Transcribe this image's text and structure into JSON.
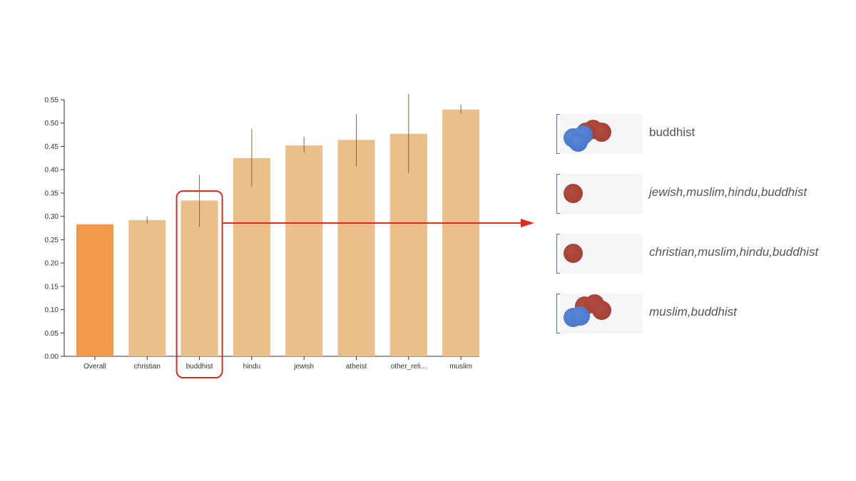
{
  "chart_data": {
    "type": "bar",
    "categories": [
      "Overall",
      "christian",
      "buddhist",
      "hindu",
      "jewish",
      "atheist",
      "other_reli...",
      "muslim"
    ],
    "values": [
      0.283,
      0.292,
      0.334,
      0.425,
      0.452,
      0.464,
      0.477,
      0.529
    ],
    "error_low": [
      0.283,
      0.285,
      0.277,
      0.363,
      0.436,
      0.407,
      0.392,
      0.52
    ],
    "error_high": [
      0.283,
      0.3,
      0.389,
      0.488,
      0.471,
      0.519,
      0.562,
      0.54
    ],
    "ylim": [
      0,
      0.55
    ],
    "yticks": [
      "0.00",
      "0.05",
      "0.10",
      "0.15",
      "0.20",
      "0.25",
      "0.30",
      "0.35",
      "0.40",
      "0.45",
      "0.50",
      "0.55"
    ],
    "highlighted_category": "buddhist",
    "grid": false,
    "colors": {
      "overall": "#f2994a",
      "bar": "#e9c08b",
      "error": "#8a6a2a",
      "highlight": "#e02b20"
    }
  },
  "panel": {
    "items": [
      {
        "label": "buddhist",
        "italic": false,
        "red": 3,
        "blue": 3
      },
      {
        "label": "jewish,muslim,hindu,buddhist",
        "italic": true,
        "red": 1,
        "blue": 0
      },
      {
        "label": "christian,muslim,hindu,buddhist",
        "italic": true,
        "red": 1,
        "blue": 0
      },
      {
        "label": "muslim,buddhist",
        "italic": true,
        "red": 3,
        "blue": 2
      }
    ]
  }
}
